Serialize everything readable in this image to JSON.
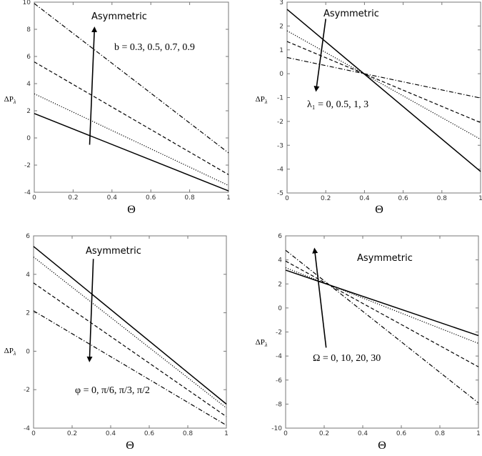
{
  "chart_data": [
    {
      "type": "line",
      "xlabel": "Θ",
      "ylabel": "ΔP",
      "ylabel_sub": "λ",
      "xlim": [
        0,
        1
      ],
      "ylim": [
        -4,
        10
      ],
      "xticks": [
        "0",
        "0.2",
        "0.4",
        "0.6",
        "0.8",
        "1"
      ],
      "yticks": [
        "-4",
        "-2",
        "0",
        "2",
        "4",
        "6",
        "8",
        "10"
      ],
      "grid": false,
      "annotation": "Asymmetric",
      "parameter_label": "b = 0.3, 0.5, 0.7, 0.9",
      "arrow": {
        "from": [
          0.285,
          -0.5
        ],
        "to": [
          0.31,
          8.1
        ]
      },
      "series": [
        {
          "style": "solid",
          "x": [
            0,
            1
          ],
          "y": [
            1.8,
            -3.9
          ]
        },
        {
          "style": "dotted",
          "x": [
            0,
            1
          ],
          "y": [
            3.25,
            -3.5
          ]
        },
        {
          "style": "dashed",
          "x": [
            0,
            1
          ],
          "y": [
            5.6,
            -2.7
          ]
        },
        {
          "style": "dashdot",
          "x": [
            0,
            1
          ],
          "y": [
            9.9,
            -1.1
          ]
        }
      ]
    },
    {
      "type": "line",
      "xlabel": "Θ",
      "ylabel": "ΔP",
      "ylabel_sub": "λ",
      "xlim": [
        0,
        1
      ],
      "ylim": [
        -5,
        3
      ],
      "xticks": [
        "0",
        "0.2",
        "0.4",
        "0.6",
        "0.8",
        "1"
      ],
      "yticks": [
        "-5",
        "-4",
        "-3",
        "-2",
        "-1",
        "0",
        "1",
        "2",
        "3"
      ],
      "grid": false,
      "annotation": "Asymmetric",
      "parameter_label": "λ₁ = 0, 0.5, 1, 3",
      "arrow": {
        "from": [
          0.2,
          2.3
        ],
        "to": [
          0.15,
          -0.7
        ]
      },
      "series": [
        {
          "style": "solid",
          "x": [
            0,
            1
          ],
          "y": [
            2.7,
            -4.1
          ]
        },
        {
          "style": "dotted",
          "x": [
            0,
            1
          ],
          "y": [
            1.8,
            -2.75
          ]
        },
        {
          "style": "dashed",
          "x": [
            0,
            1
          ],
          "y": [
            1.35,
            -2.05
          ]
        },
        {
          "style": "dashdot",
          "x": [
            0,
            1
          ],
          "y": [
            0.68,
            -1.02
          ]
        }
      ]
    },
    {
      "type": "line",
      "xlabel": "Θ",
      "ylabel": "ΔP",
      "ylabel_sub": "λ",
      "xlim": [
        0,
        1
      ],
      "ylim": [
        -4,
        6
      ],
      "xticks": [
        "0",
        "0.2",
        "0.4",
        "0.6",
        "0.8",
        "1"
      ],
      "yticks": [
        "-4",
        "-2",
        "0",
        "2",
        "4",
        "6"
      ],
      "grid": false,
      "annotation": "Asymmetric",
      "parameter_label": "φ = 0, π/6, π/3, π/2",
      "arrow": {
        "from": [
          0.31,
          4.8
        ],
        "to": [
          0.29,
          -0.5
        ]
      },
      "series": [
        {
          "style": "solid",
          "x": [
            0,
            1
          ],
          "y": [
            5.45,
            -2.75
          ]
        },
        {
          "style": "dotted",
          "x": [
            0,
            1
          ],
          "y": [
            4.9,
            -2.95
          ]
        },
        {
          "style": "dashed",
          "x": [
            0,
            1
          ],
          "y": [
            3.55,
            -3.4
          ]
        },
        {
          "style": "dashdot",
          "x": [
            0,
            1
          ],
          "y": [
            2.1,
            -3.85
          ]
        }
      ]
    },
    {
      "type": "line",
      "xlabel": "Θ",
      "ylabel": "ΔP",
      "ylabel_sub": "λ",
      "xlim": [
        0,
        1
      ],
      "ylim": [
        -10,
        6
      ],
      "xticks": [
        "0",
        "0.2",
        "0.4",
        "0.6",
        "0.8",
        "1"
      ],
      "yticks": [
        "-10",
        "-8",
        "-6",
        "-4",
        "-2",
        "0",
        "2",
        "4",
        "6"
      ],
      "grid": false,
      "annotation": "Asymmetric",
      "parameter_label": "Ω = 0, 10, 20, 30",
      "arrow": {
        "from": [
          0.21,
          -3.3
        ],
        "to": [
          0.15,
          4.9
        ]
      },
      "series": [
        {
          "style": "solid",
          "x": [
            0,
            1
          ],
          "y": [
            3.15,
            -2.3
          ]
        },
        {
          "style": "dotted",
          "x": [
            0,
            1
          ],
          "y": [
            3.35,
            -2.95
          ]
        },
        {
          "style": "dashed",
          "x": [
            0,
            1
          ],
          "y": [
            3.9,
            -4.9
          ]
        },
        {
          "style": "dashdot",
          "x": [
            0,
            1
          ],
          "y": [
            4.8,
            -7.9
          ]
        }
      ]
    }
  ]
}
